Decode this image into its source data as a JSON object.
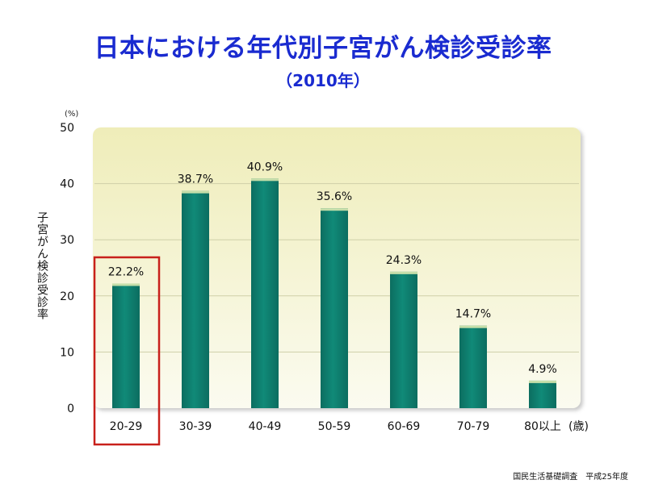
{
  "header": {
    "title": "日本における年代別子宮がん検診受診率",
    "subtitle": "（2010年）"
  },
  "footer": {
    "source": "国民生活基礎調査　平成25年度"
  },
  "colors": {
    "bar": "#108a78",
    "bar_top": "#d9e9b0",
    "plot_bg_top": "#efedb9",
    "plot_bg_bottom": "#fbfbf0",
    "highlight_box": "#c8201b",
    "grid": "#cfcfa8"
  },
  "chart_data": {
    "type": "bar",
    "title": "日本における年代別子宮がん検診受診率",
    "subtitle": "（2010年）",
    "ylabel": "子宮がん検診受診率",
    "yunit": "(%)",
    "xunit": "(歳)",
    "ylim": [
      0,
      50
    ],
    "yticks": [
      0,
      10,
      20,
      30,
      40,
      50
    ],
    "grid": true,
    "categories": [
      "20-29",
      "30-39",
      "40-49",
      "50-59",
      "60-69",
      "70-79",
      "80以上"
    ],
    "values": [
      22.2,
      38.7,
      40.9,
      35.6,
      24.3,
      14.7,
      4.9
    ],
    "value_labels": [
      "22.2%",
      "38.7%",
      "40.9%",
      "35.6%",
      "24.3%",
      "14.7%",
      "4.9%"
    ],
    "highlighted_category": "20-29"
  }
}
